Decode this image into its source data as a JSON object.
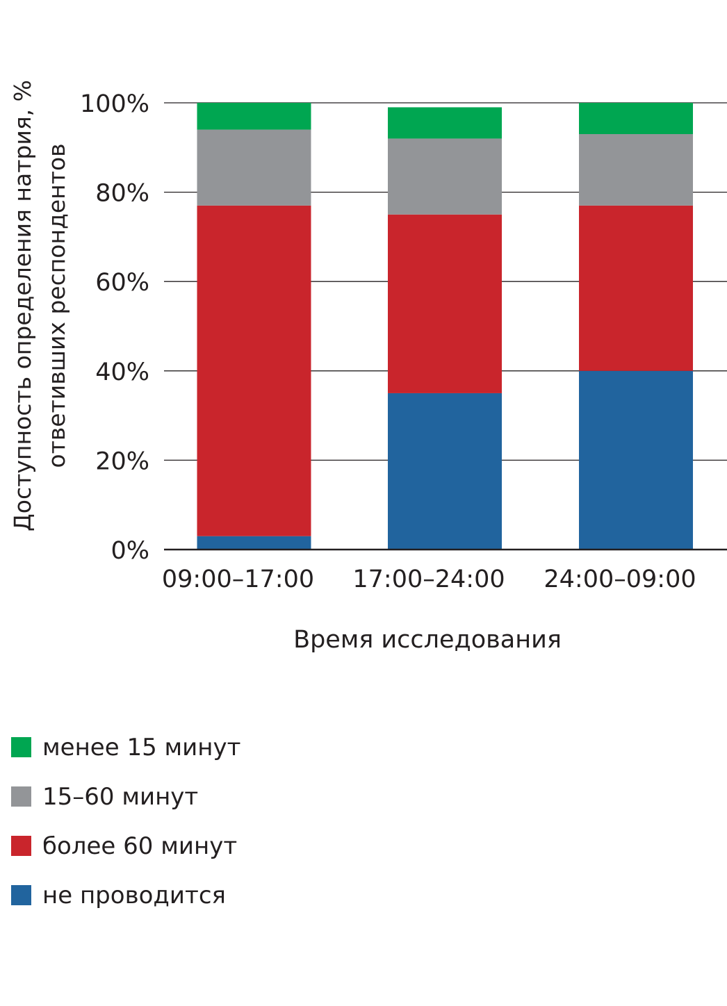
{
  "chart_data": {
    "type": "bar",
    "stacked": true,
    "title": "",
    "xlabel": "Время исследования",
    "ylabel": [
      "Доступность определения натрия, %",
      "ответивших респондентов"
    ],
    "categories": [
      "09:00–17:00",
      "17:00–24:00",
      "24:00–09:00"
    ],
    "ylim": [
      0,
      100
    ],
    "yticks": [
      0,
      20,
      40,
      60,
      80,
      100
    ],
    "ytick_labels": [
      "0%",
      "20%",
      "40%",
      "60%",
      "80%",
      "100%"
    ],
    "grid": true,
    "legend_position": "bottom-left",
    "series": [
      {
        "name": "не проводится",
        "color": "#21649e",
        "values": [
          3,
          35,
          40
        ]
      },
      {
        "name": "более 60 минут",
        "color": "#c9252c",
        "values": [
          74,
          40,
          37
        ]
      },
      {
        "name": "15–60 минут",
        "color": "#939598",
        "values": [
          17,
          17,
          16
        ]
      },
      {
        "name": "менее 15 минут",
        "color": "#00a651",
        "values": [
          6,
          7,
          7
        ]
      }
    ],
    "legend_order": [
      3,
      2,
      1,
      0
    ]
  }
}
